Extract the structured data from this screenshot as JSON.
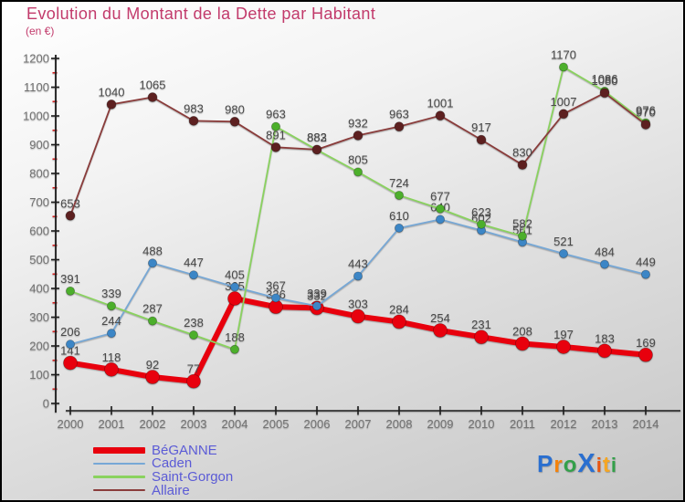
{
  "title": "Evolution du Montant de la Dette par Habitant",
  "subtitle": "(en €)",
  "colors": {
    "title": "#c23a6b",
    "axis": "#1c1c1c",
    "tick_label": "#737373",
    "minor_tick": "#d42020",
    "data_label": "#4a4a4a",
    "legend_text": "#5b5bd6",
    "background_top": "#ffffff",
    "background_bottom": "#c6c6c6",
    "border": "#000000"
  },
  "chart_data": {
    "type": "line",
    "x": [
      2000,
      2001,
      2002,
      2003,
      2004,
      2005,
      2006,
      2007,
      2008,
      2009,
      2010,
      2011,
      2012,
      2013,
      2014
    ],
    "x_tick_labels": [
      "2000",
      "2001",
      "2002",
      "2003",
      "2004",
      "2005",
      "2006",
      "2007",
      "2008",
      "2009",
      "2010",
      "2011",
      "2012",
      "2013",
      "2014"
    ],
    "y_tick_labels": [
      "0",
      "100",
      "200",
      "300",
      "400",
      "500",
      "600",
      "700",
      "800",
      "900",
      "1000",
      "1100",
      "1200"
    ],
    "ylim": [
      0,
      1200
    ],
    "y_major_step": 100,
    "y_minor_step": 50,
    "grid": false,
    "legend_position": "bottom-left",
    "xlabel": "",
    "ylabel": "en €",
    "series": [
      {
        "name": "BéGANNE",
        "line_color": "#e8000d",
        "point_color": "#e8000d",
        "line_width": 6,
        "point_radius": 7.5,
        "values": [
          141,
          118,
          92,
          77,
          365,
          336,
          332,
          303,
          284,
          254,
          231,
          208,
          197,
          183,
          169
        ]
      },
      {
        "name": "Caden",
        "line_color": "#77a8d6",
        "point_color": "#3c86c6",
        "line_width": 1.8,
        "point_radius": 4.6,
        "values": [
          206,
          244,
          488,
          447,
          405,
          367,
          339,
          443,
          610,
          640,
          602,
          561,
          521,
          484,
          449
        ]
      },
      {
        "name": "Saint-Gorgon",
        "line_color": "#8ad25f",
        "point_color": "#4caf2b",
        "line_width": 1.8,
        "point_radius": 4.6,
        "values": [
          391,
          339,
          287,
          238,
          188,
          963,
          882,
          805,
          724,
          677,
          623,
          582,
          1170,
          1086,
          976
        ]
      },
      {
        "name": "Allaire",
        "line_color": "#8a3c3b",
        "point_color": "#5d2020",
        "line_width": 1.8,
        "point_radius": 5,
        "values": [
          653,
          1040,
          1065,
          983,
          980,
          891,
          883,
          932,
          963,
          1001,
          917,
          830,
          1007,
          1080,
          970
        ]
      }
    ]
  },
  "logo": {
    "text": "Proxiti",
    "letters": [
      {
        "ch": "P",
        "color": "#2a6fd0",
        "size": 26
      },
      {
        "ch": "r",
        "color": "#f5820a",
        "size": 24
      },
      {
        "ch": "o",
        "color": "#33a04a",
        "size": 24
      },
      {
        "ch": "X",
        "color": "#2a6fd0",
        "size": 29
      },
      {
        "ch": "i",
        "color": "#e8550e",
        "size": 22
      },
      {
        "ch": "t",
        "color": "#f5a623",
        "size": 24
      },
      {
        "ch": "i",
        "color": "#33a04a",
        "size": 22
      }
    ]
  }
}
